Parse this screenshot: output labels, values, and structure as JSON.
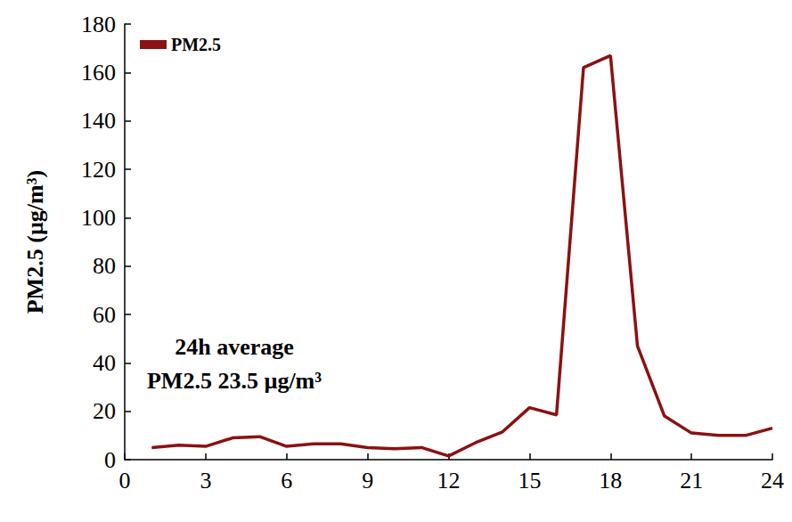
{
  "chart_data": {
    "type": "line",
    "y_label": "PM2.5 (µg/m³)",
    "annotation": [
      "24h average",
      "PM2.5 23.5 µg/m³"
    ],
    "x": [
      1,
      2,
      3,
      4,
      5,
      6,
      7,
      8,
      9,
      10,
      11,
      12,
      13,
      14,
      15,
      16,
      17,
      18,
      19,
      20,
      21,
      22,
      23,
      24
    ],
    "series": [
      {
        "name": "PM2.5",
        "color": "#8b1212",
        "marker": "none",
        "values": [
          5,
          6,
          5.5,
          9,
          9.5,
          5.5,
          6.5,
          6.5,
          5,
          4.5,
          5,
          1.5,
          7,
          11.5,
          21.5,
          18.5,
          162,
          167,
          47,
          18,
          11,
          10,
          10,
          13
        ]
      }
    ],
    "xlim": [
      0,
      24
    ],
    "xticks": [
      0,
      3,
      6,
      9,
      12,
      15,
      18,
      21,
      24
    ],
    "ylim": [
      0,
      180
    ],
    "yticks": [
      0,
      20,
      40,
      60,
      80,
      100,
      120,
      140,
      160,
      180
    ],
    "grid": false,
    "legend": "upper left"
  }
}
